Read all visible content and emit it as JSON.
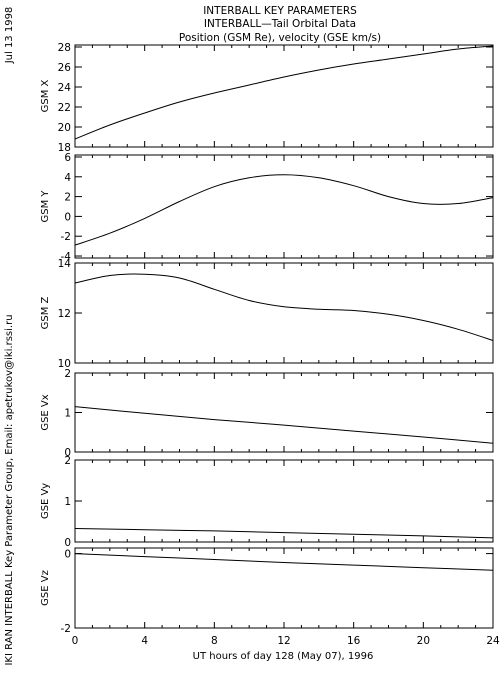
{
  "header": {
    "title_line1": "INTERBALL KEY PARAMETERS",
    "title_line2": "INTERBALL—Tail Orbital Data",
    "title_line3": "Position (GSM Re), velocity (GSE km/s)"
  },
  "side_text": {
    "date": "Jul 13 1998",
    "credit": "IKI RAN INTERBALL Key Parameter Group, Email: apetrukov@iki.rssi.ru"
  },
  "chart_data": {
    "type": "line",
    "xlabel": "UT hours of day 128 (May 07), 1996",
    "xlim": [
      0,
      24
    ],
    "xticks": [
      0,
      4,
      8,
      12,
      16,
      20,
      24
    ],
    "panels": [
      {
        "ylabel": "GSM X",
        "ylim": [
          18,
          28.2
        ],
        "yticks": [
          18,
          20,
          22,
          24,
          26,
          28
        ],
        "x": [
          0,
          2,
          4,
          6,
          8,
          10,
          12,
          14,
          16,
          18,
          20,
          22,
          24
        ],
        "values": [
          18.8,
          20.2,
          21.4,
          22.5,
          23.4,
          24.2,
          25.0,
          25.7,
          26.3,
          26.8,
          27.3,
          27.8,
          28.1
        ]
      },
      {
        "ylabel": "GSM Y",
        "ylim": [
          -4.2,
          6.2
        ],
        "yticks": [
          -4,
          -2,
          0,
          2,
          4,
          6
        ],
        "x": [
          0,
          2,
          4,
          6,
          8,
          10,
          12,
          14,
          16,
          18,
          20,
          22,
          24
        ],
        "values": [
          -2.9,
          -1.7,
          -0.2,
          1.5,
          3.0,
          3.9,
          4.2,
          3.9,
          3.1,
          2.0,
          1.3,
          1.3,
          1.9
        ]
      },
      {
        "ylabel": "GSM Z",
        "ylim": [
          10,
          14
        ],
        "yticks": [
          10,
          12,
          14
        ],
        "x": [
          0,
          2,
          4,
          6,
          8,
          10,
          12,
          14,
          16,
          18,
          20,
          22,
          24
        ],
        "values": [
          13.2,
          13.5,
          13.55,
          13.4,
          12.95,
          12.5,
          12.25,
          12.15,
          12.1,
          11.95,
          11.7,
          11.35,
          10.9
        ]
      },
      {
        "ylabel": "GSE Vx",
        "ylim": [
          0,
          2
        ],
        "yticks": [
          0,
          1,
          2
        ],
        "x": [
          0,
          4,
          8,
          12,
          16,
          20,
          24
        ],
        "values": [
          1.15,
          0.98,
          0.82,
          0.68,
          0.53,
          0.38,
          0.22
        ]
      },
      {
        "ylabel": "GSE Vy",
        "ylim": [
          0,
          2
        ],
        "yticks": [
          0,
          1,
          2
        ],
        "x": [
          0,
          4,
          8,
          12,
          16,
          20,
          24
        ],
        "values": [
          0.33,
          0.3,
          0.27,
          0.23,
          0.19,
          0.15,
          0.1
        ]
      },
      {
        "ylabel": "GSE Vz",
        "ylim": [
          -2,
          0.15
        ],
        "yticks": [
          -2,
          0
        ],
        "x": [
          0,
          4,
          8,
          12,
          16,
          20,
          24
        ],
        "values": [
          0.0,
          -0.08,
          -0.16,
          -0.24,
          -0.31,
          -0.38,
          -0.45
        ]
      }
    ]
  }
}
